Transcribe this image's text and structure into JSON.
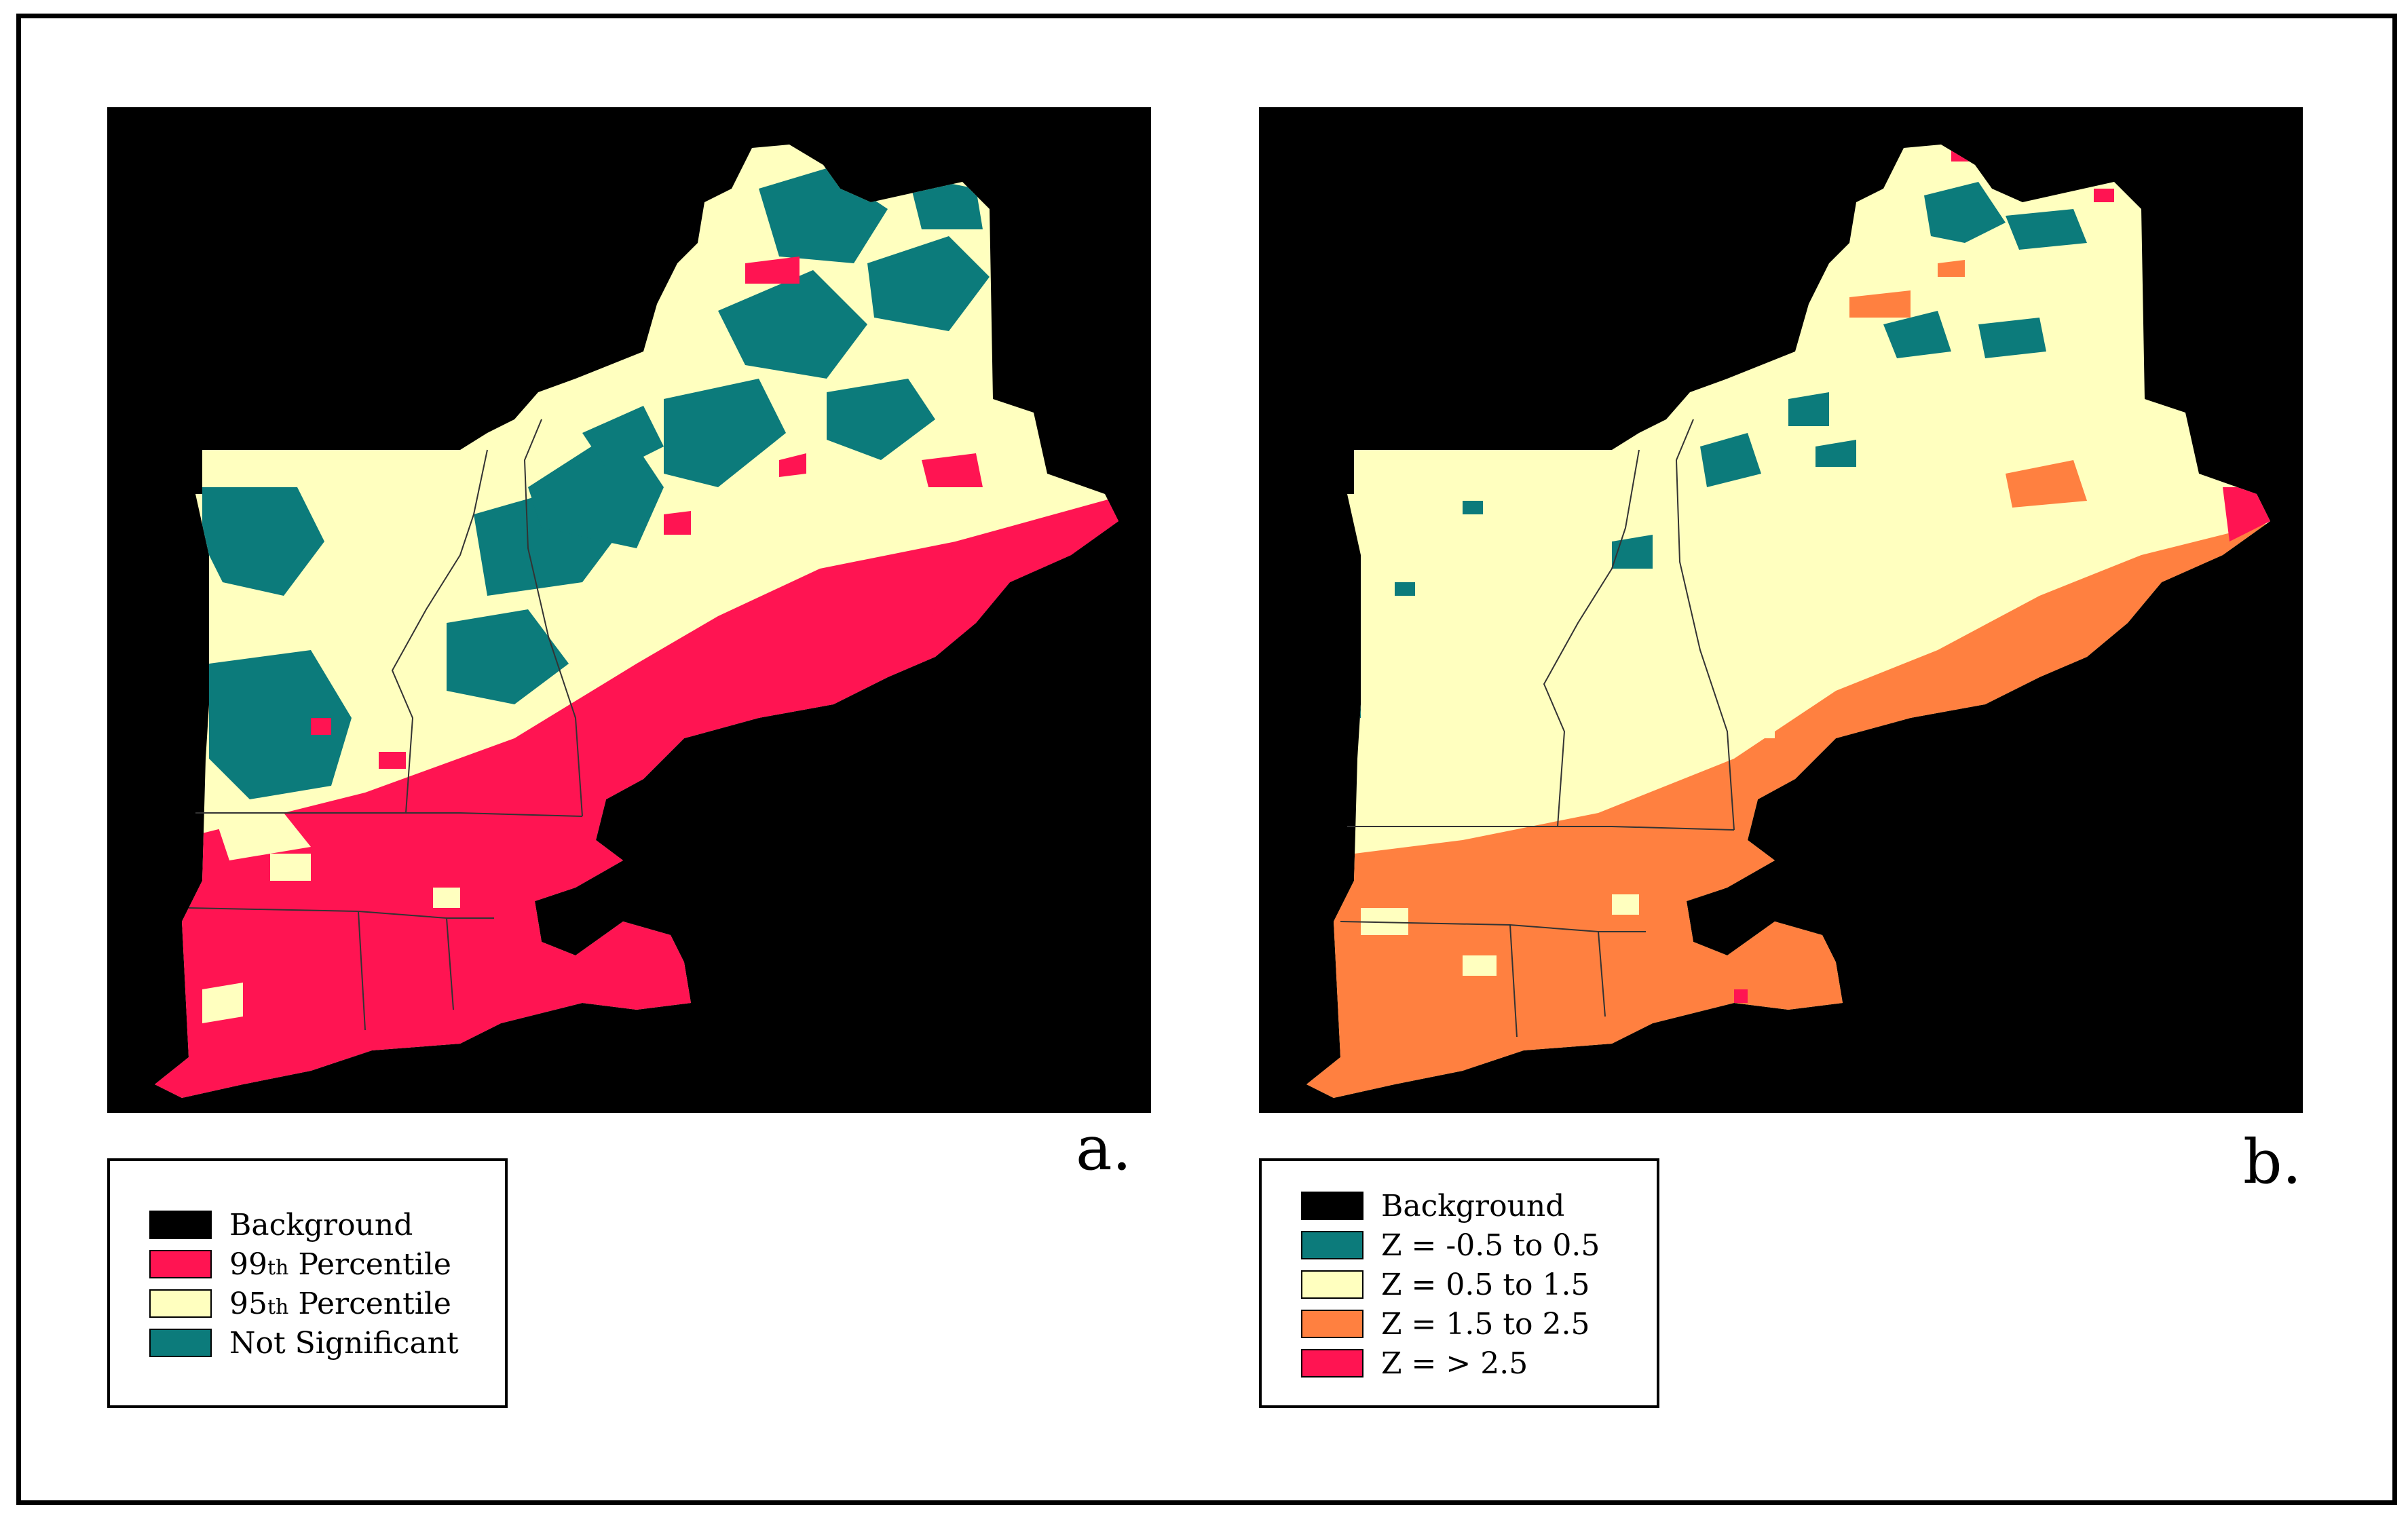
{
  "colors": {
    "background": "#000000",
    "teal": "#0c7b7b",
    "pale_yellow": "#ffffbf",
    "red": "#ff1452",
    "orange": "#ff8040",
    "state_lines": "#333333"
  },
  "panel_a": {
    "label": "a.",
    "legend": [
      {
        "text": "Background",
        "color": "#000000"
      },
      {
        "base": "99",
        "sup": "th",
        "rest": " Percentile",
        "color": "#ff1452"
      },
      {
        "base": "95",
        "sup": "th",
        "rest": " Percentile",
        "color": "#ffffbf"
      },
      {
        "text": "Not Significant",
        "color": "#0c7b7b"
      }
    ]
  },
  "panel_b": {
    "label": "b.",
    "legend": [
      {
        "text": "Background",
        "color": "#000000"
      },
      {
        "text": "Z = -0.5 to 0.5",
        "color": "#0c7b7b"
      },
      {
        "text": "Z = 0.5 to 1.5",
        "color": "#ffffbf"
      },
      {
        "text": "Z = 1.5 to 2.5",
        "color": "#ff8040"
      },
      {
        "text": "Z = > 2.5",
        "color": "#ff1452"
      }
    ]
  }
}
